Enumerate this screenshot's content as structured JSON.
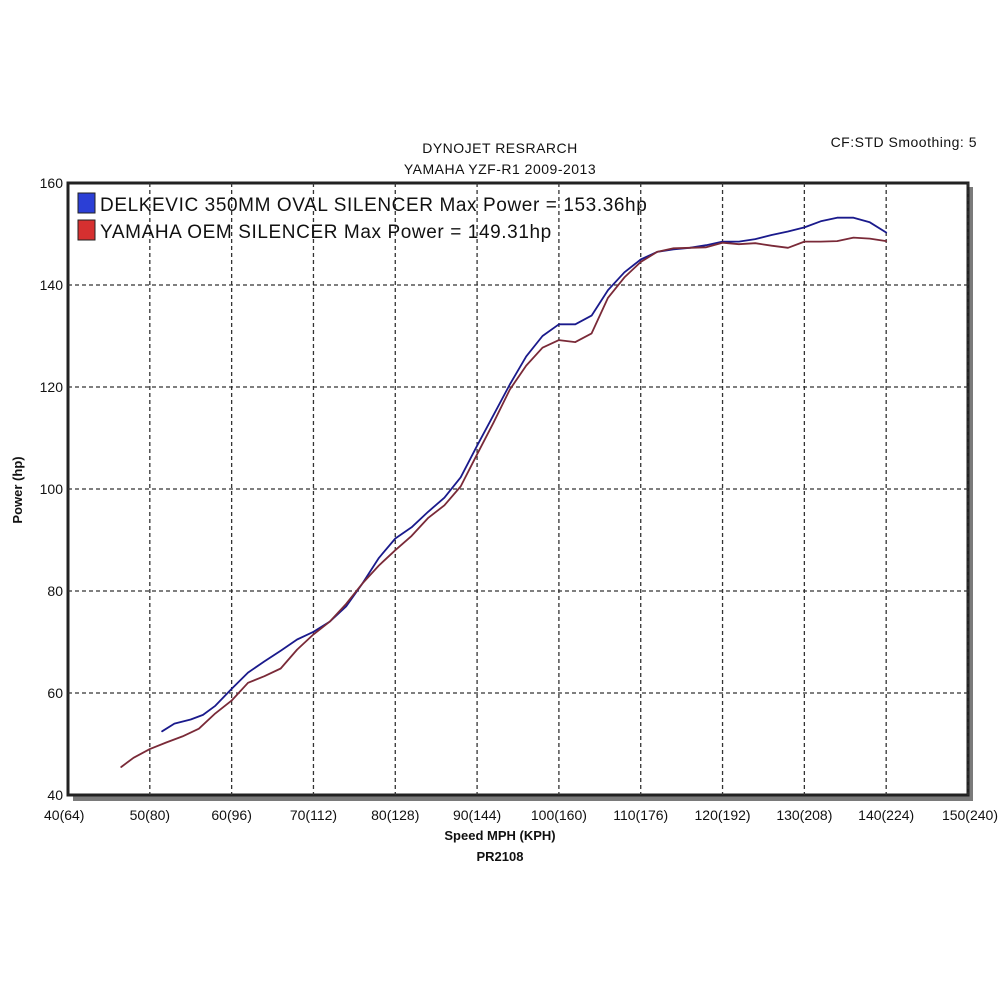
{
  "header": {
    "title_line1": "DYNOJET RESRARCH",
    "title_line2": "YAMAHA YZF-R1 2009-2013",
    "settings": "CF:STD Smoothing: 5"
  },
  "chart_data": {
    "type": "line",
    "xlabel": "Speed MPH (KPH)",
    "ylabel": "Power (hp)",
    "footer": "PR2108",
    "xlim": [
      40,
      150
    ],
    "ylim": [
      40,
      160
    ],
    "x_ticks": [
      40,
      50,
      60,
      70,
      80,
      90,
      100,
      110,
      120,
      130,
      140,
      150
    ],
    "x_tick_labels": [
      "40(64)",
      "50(80)",
      "60(96)",
      "70(112)",
      "80(128)",
      "90(144)",
      "100(160)",
      "110(176)",
      "120(192)",
      "130(208)",
      "140(224)",
      "150(240)"
    ],
    "y_ticks": [
      40,
      60,
      80,
      100,
      120,
      140,
      160
    ],
    "y_tick_labels": [
      "40",
      "60",
      "80",
      "100",
      "120",
      "140",
      "160"
    ],
    "grid": true,
    "legend_position": "top-left",
    "series": [
      {
        "name": "DELKEVIC 350MM OVAL SILENCER  Max Power = 153.36hp",
        "color": "#1a1a8c",
        "swatch_color": "#2b3fd6",
        "x": [
          51.5,
          53,
          55,
          56.5,
          58,
          60,
          62,
          64,
          66,
          68,
          70,
          72,
          74,
          76,
          78,
          80,
          82,
          84,
          86,
          88,
          90,
          92,
          94,
          96,
          98,
          100,
          102,
          104,
          106,
          108,
          110,
          112,
          114,
          116,
          118,
          120,
          122,
          124,
          126,
          128,
          130,
          132,
          134,
          136,
          138,
          140
        ],
        "y": [
          52.5,
          54,
          54.8,
          55.7,
          57.5,
          60.8,
          64,
          66.2,
          68.3,
          70.5,
          72,
          74,
          77,
          81.5,
          86.5,
          90.3,
          92.5,
          95.5,
          98.3,
          102.3,
          108.5,
          114.5,
          120.5,
          126,
          130,
          132.3,
          132.3,
          134,
          139,
          142.5,
          145,
          146.5,
          147,
          147.3,
          147.8,
          148.5,
          148.5,
          149,
          149.8,
          150.5,
          151.3,
          152.5,
          153.2,
          153.2,
          152.3,
          150.3
        ]
      },
      {
        "name": "YAMAHA OEM SILENCER Max Power = 149.31hp",
        "color": "#7a2a38",
        "swatch_color": "#d63030",
        "x": [
          46.5,
          48,
          50,
          52,
          54,
          56,
          58,
          60,
          62,
          64,
          66,
          68,
          70,
          72,
          74,
          76,
          78,
          80,
          82,
          84,
          86,
          88,
          90,
          92,
          94,
          96,
          98,
          100,
          102,
          104,
          106,
          108,
          110,
          112,
          114,
          116,
          118,
          120,
          122,
          124,
          126,
          128,
          130,
          132,
          134,
          136,
          138,
          140
        ],
        "y": [
          45.5,
          47.3,
          49,
          50.3,
          51.5,
          53,
          56,
          58.5,
          62,
          63.3,
          64.8,
          68.5,
          71.5,
          74,
          77.5,
          81.5,
          85,
          88,
          90.8,
          94.3,
          96.8,
          100.5,
          106.8,
          113,
          119.5,
          124.2,
          127.7,
          129.2,
          128.8,
          130.5,
          137.5,
          141.5,
          144.5,
          146.5,
          147.2,
          147.3,
          147.4,
          148.3,
          148,
          148.2,
          147.7,
          147.3,
          148.5,
          148.5,
          148.6,
          149.3,
          149.1,
          148.6
        ]
      }
    ]
  }
}
